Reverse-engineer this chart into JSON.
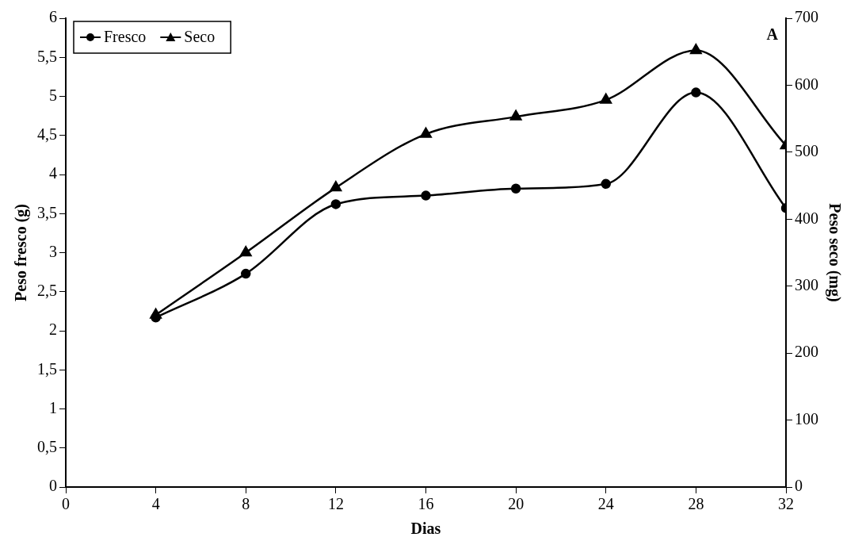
{
  "chart_data": {
    "type": "line",
    "xlabel": "Dias",
    "ylabel": "Peso fresco (g)",
    "y2label": "Peso seco (mg)",
    "annotations": [
      "A"
    ],
    "x": [
      4,
      8,
      12,
      16,
      20,
      24,
      28,
      32
    ],
    "series": [
      {
        "name": "Fresco",
        "color": "#000000",
        "marker": "circle",
        "values": [
          2.17,
          2.73,
          3.62,
          3.73,
          3.82,
          3.88,
          5.05,
          3.57
        ]
      },
      {
        "name": "Seco",
        "color": "#000000",
        "marker": "triangle",
        "axis": "y2",
        "values": [
          257,
          350,
          447,
          527,
          553,
          578,
          652,
          510
        ]
      }
    ],
    "xlim": [
      0,
      32
    ],
    "xticks": [
      0,
      4,
      8,
      12,
      16,
      20,
      24,
      28,
      32
    ],
    "ylim": [
      0,
      6
    ],
    "yticks": [
      0,
      {
        "value": 0.5,
        "label": "0,5"
      },
      1,
      {
        "value": 1.5,
        "label": "1,5"
      },
      2,
      {
        "value": 2.5,
        "label": "2,5"
      },
      3,
      {
        "value": 3.5,
        "label": "3,5"
      },
      4,
      {
        "value": 4.5,
        "label": "4,5"
      },
      5,
      {
        "value": 5.5,
        "label": "5,5"
      },
      6
    ],
    "y2lim": [
      0,
      700
    ],
    "y2ticks": [
      0,
      100,
      200,
      300,
      400,
      500,
      600,
      700
    ],
    "grid": false,
    "legend": "top left",
    "line_style": "solid"
  }
}
